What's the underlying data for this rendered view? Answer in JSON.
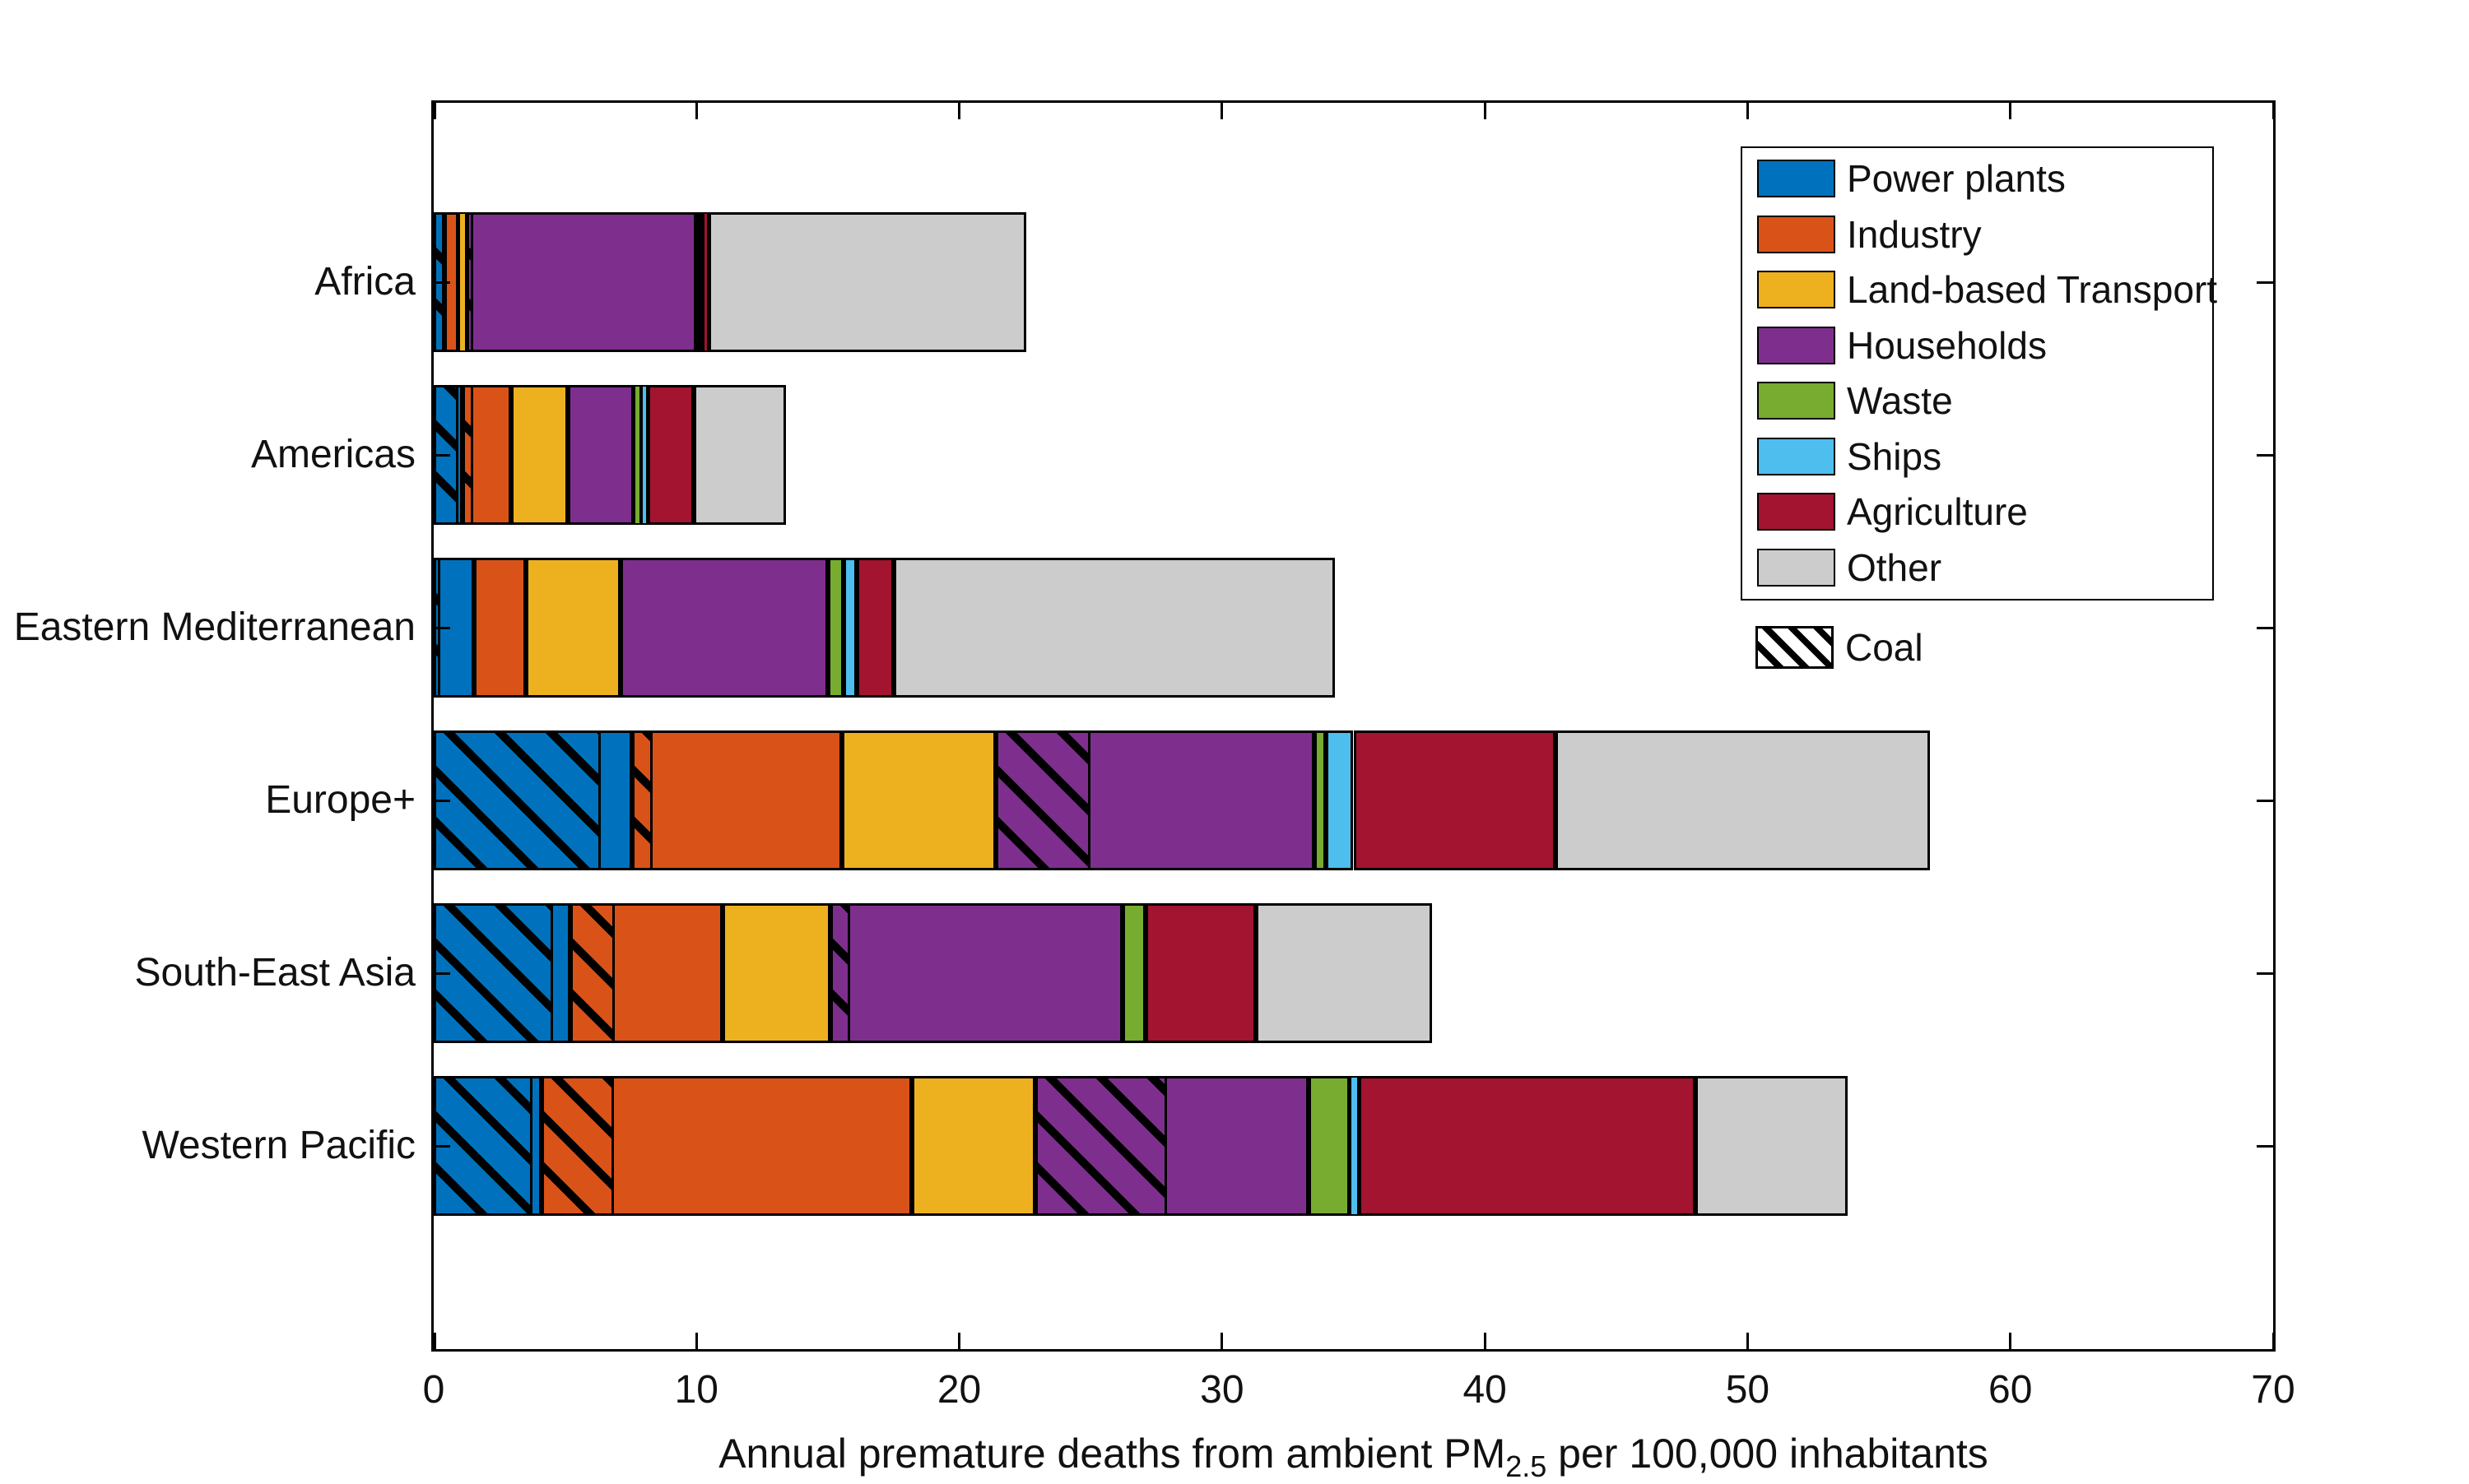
{
  "xlabel": {
    "pre": "Annual premature deaths from ambient PM",
    "sub": "2.5",
    "post": " per 100,000 inhabitants"
  },
  "legend": {
    "coal_label": "Coal"
  },
  "chart_data": {
    "type": "bar",
    "orientation": "horizontal",
    "stacked": true,
    "title": "",
    "xlabel": "Annual premature deaths from ambient PM2.5 per 100,000 inhabitants",
    "xlim": [
      0,
      70
    ],
    "xticks": [
      0,
      10,
      20,
      30,
      40,
      50,
      60,
      70
    ],
    "xtick_labels": [
      "0",
      "10",
      "20",
      "30",
      "40",
      "50",
      "60",
      "70"
    ],
    "grid": false,
    "legend_position": "inside-upper-right",
    "categories": [
      "Africa",
      "Americas",
      "Eastern Mediterranean",
      "Europe+",
      "South-East Asia",
      "Western Pacific"
    ],
    "series": [
      {
        "name": "Power plants",
        "color": "#0072BD",
        "values": [
          0.4,
          1.1,
          1.55,
          7.55,
          5.2,
          4.1
        ]
      },
      {
        "name": "Industry",
        "color": "#D95319",
        "values": [
          0.55,
          1.85,
          1.95,
          8.0,
          5.8,
          14.1
        ]
      },
      {
        "name": "Land-based Transport",
        "color": "#EDB120",
        "values": [
          0.3,
          2.15,
          3.6,
          5.85,
          4.1,
          4.7
        ]
      },
      {
        "name": "Households",
        "color": "#7E2F8E",
        "values": [
          8.75,
          2.5,
          7.9,
          12.1,
          11.1,
          10.4
        ]
      },
      {
        "name": "Waste",
        "color": "#77AC30",
        "values": [
          0.12,
          0.3,
          0.6,
          0.45,
          0.9,
          1.55
        ]
      },
      {
        "name": "Ships",
        "color": "#4DBEEE",
        "values": [
          0.13,
          0.25,
          0.5,
          1.05,
          0.0,
          0.35
        ]
      },
      {
        "name": "Agriculture",
        "color": "#A2142F",
        "values": [
          0.2,
          1.75,
          1.4,
          7.7,
          4.2,
          12.8
        ]
      },
      {
        "name": "Other",
        "color": "#CCCCCC",
        "values": [
          12.1,
          3.5,
          16.8,
          14.25,
          6.7,
          5.8
        ]
      }
    ],
    "coal_overlay": {
      "label": "Coal",
      "pattern": "diagonal-hatch",
      "note": "hatched portion at start of segment",
      "values": {
        "Power plants": [
          0.4,
          0.85,
          0.15,
          6.25,
          4.45,
          3.65
        ],
        "Industry": [
          0.0,
          0.3,
          0.0,
          0.7,
          1.6,
          2.65
        ],
        "Households": [
          0.15,
          0.0,
          0.0,
          3.5,
          0.65,
          4.9
        ]
      }
    },
    "totals": [
      22.55,
      13.4,
      34.3,
      56.95,
      38.0,
      53.8
    ]
  }
}
